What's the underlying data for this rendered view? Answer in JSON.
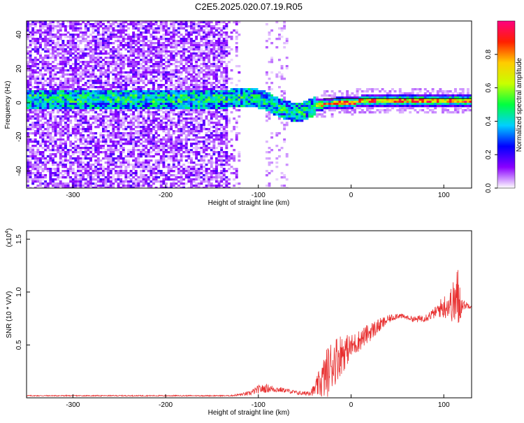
{
  "title": "C2E5.2025.020.07.19.R05",
  "chart_data": [
    {
      "type": "heatmap",
      "xlabel": "Height of straight line (km)",
      "ylabel": "Frequency (Hz)",
      "xlim": [
        -350,
        130
      ],
      "ylim": [
        -50,
        48
      ],
      "xticks": [
        -300,
        -200,
        -100,
        0,
        100
      ],
      "yticks": [
        -40,
        -20,
        0,
        20,
        40
      ],
      "colorbar": {
        "label": "Normalized spectral amplitude",
        "range": [
          0,
          1
        ],
        "ticks": [
          "0.0",
          "0.2",
          "0.4",
          "0.6",
          "0.8"
        ],
        "colors": [
          "#ffffff",
          "#8a00ff",
          "#0000ff",
          "#00d0ff",
          "#00ff40",
          "#c8ff00",
          "#ffcc00",
          "#ff2000",
          "#ff0080"
        ]
      },
      "ridge": {
        "x": [
          -135,
          -120,
          -100,
          -90,
          -80,
          -70,
          -60,
          -50,
          -40,
          -30,
          -20,
          -10,
          0,
          20,
          40,
          60,
          80,
          90,
          100,
          110,
          130
        ],
        "y": [
          3,
          4,
          3,
          1,
          -2,
          -4,
          -5,
          -4,
          -1,
          0,
          0,
          1,
          1,
          2,
          2,
          2,
          2,
          2,
          2,
          2,
          2
        ]
      }
    },
    {
      "type": "line",
      "xlabel": "Height of straight line (km)",
      "ylabel": "SNR (10 * V/V)",
      "y_multiplier": "(x10",
      "y_multiplier_exp": "4",
      "y_multiplier_close": ")",
      "xlim": [
        -350,
        130
      ],
      "ylim": [
        0,
        1.58
      ],
      "xticks": [
        -300,
        -200,
        -100,
        0,
        100
      ],
      "yticks": [
        "0.5",
        "1.0",
        "1.5"
      ],
      "ytick_values": [
        0.5,
        1.0,
        1.5
      ],
      "series": [
        {
          "color": "#e83030",
          "x": [
            -350,
            -300,
            -200,
            -130,
            -110,
            -100,
            -90,
            -80,
            -70,
            -60,
            -50,
            -40,
            -30,
            -25,
            -20,
            -15,
            -10,
            -5,
            0,
            10,
            20,
            30,
            40,
            50,
            60,
            70,
            80,
            90,
            95,
            100,
            105,
            110,
            115,
            120,
            130
          ],
          "y": [
            0.02,
            0.02,
            0.02,
            0.02,
            0.04,
            0.08,
            0.09,
            0.08,
            0.07,
            0.05,
            0.04,
            0.07,
            0.18,
            0.25,
            0.33,
            0.38,
            0.42,
            0.45,
            0.48,
            0.55,
            0.62,
            0.68,
            0.74,
            0.78,
            0.76,
            0.74,
            0.76,
            0.8,
            0.84,
            0.86,
            0.88,
            0.9,
            0.92,
            0.88,
            0.87
          ],
          "noise": [
            0.005,
            0.005,
            0.005,
            0.005,
            0.02,
            0.04,
            0.04,
            0.03,
            0.02,
            0.02,
            0.02,
            0.05,
            0.2,
            0.25,
            0.25,
            0.22,
            0.2,
            0.15,
            0.12,
            0.1,
            0.09,
            0.07,
            0.04,
            0.03,
            0.02,
            0.03,
            0.04,
            0.05,
            0.08,
            0.12,
            0.12,
            0.2,
            0.35,
            0.05,
            0.02
          ]
        }
      ]
    }
  ]
}
